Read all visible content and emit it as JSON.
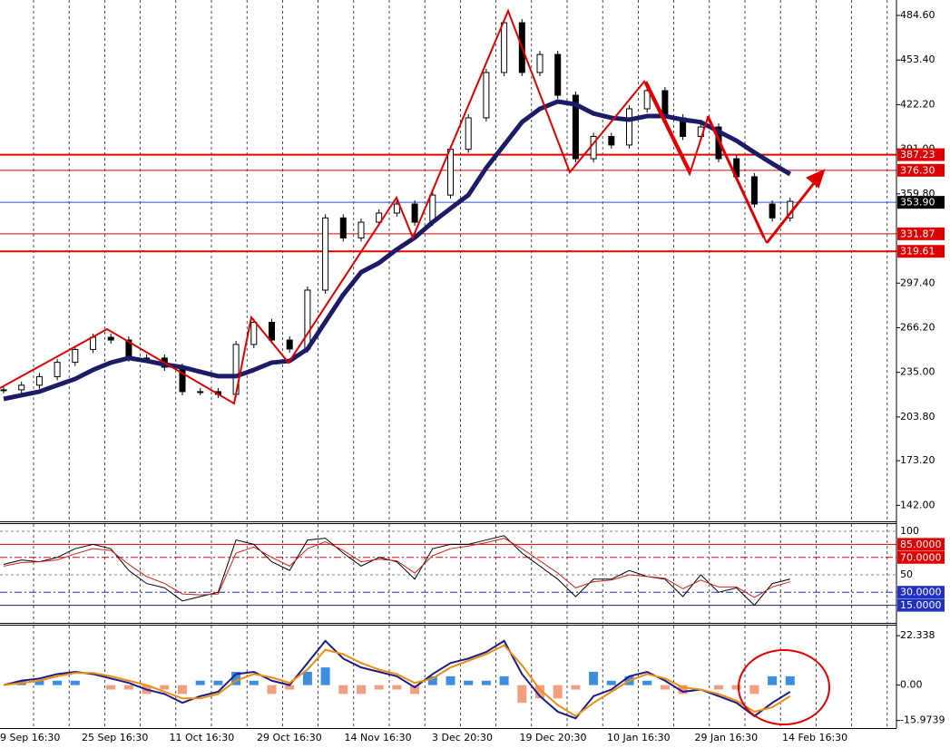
{
  "chart_data": [
    {
      "type": "candlestick",
      "ylim": [
        130.8,
        495.4
      ],
      "yticks": [
        {
          "value": 484.6,
          "label": "484.60"
        },
        {
          "value": 453.4,
          "label": "453.40"
        },
        {
          "value": 422.2,
          "label": "422.20"
        },
        {
          "value": 391,
          "label": "391.00"
        },
        {
          "value": 359.8,
          "label": "359.80"
        },
        {
          "value": 297.4,
          "label": "297.40"
        },
        {
          "value": 266.2,
          "label": "266.20"
        },
        {
          "value": 235,
          "label": "235.00"
        },
        {
          "value": 203.8,
          "label": "203.80"
        },
        {
          "value": 173.2,
          "label": "173.20"
        },
        {
          "value": 142,
          "label": "142.00"
        }
      ],
      "closes": [
        222.8,
        226,
        232,
        242,
        251,
        259.5,
        257.6,
        245,
        245,
        238.6,
        221.5,
        221.5,
        219.6,
        254.5,
        270,
        257.6,
        251.3,
        292.5,
        343,
        329,
        340,
        346.4,
        352.7,
        340,
        359,
        391,
        413,
        444.7,
        479.5,
        444.7,
        457.3,
        428.8,
        384.4,
        400,
        394,
        419.3,
        432,
        413,
        400,
        406.6,
        384.4,
        371.8,
        352.7,
        343,
        354.6
      ],
      "ma": {
        "color": "#1c1c66",
        "values": [
          216.4,
          219,
          221.5,
          226,
          230.4,
          236.7,
          241.8,
          245,
          243,
          240.5,
          238.6,
          235.4,
          232.3,
          232.3,
          236.7,
          241.8,
          243,
          251.3,
          270.3,
          289.3,
          305,
          311.5,
          321,
          329.2,
          340,
          349.6,
          359,
          378,
          394,
          410,
          419.3,
          424.4,
          422.4,
          416,
          413,
          411.7,
          414.2,
          414.2,
          411.7,
          410,
          403.4,
          397,
          388.8,
          381,
          373.6
        ]
      },
      "levels": [
        {
          "value": 387.23,
          "color": "#e00000",
          "box": "#e00000",
          "width": 2
        },
        {
          "value": 376.3,
          "label": "376.30",
          "color": "#e00000",
          "box": "#e00000",
          "width": 1
        },
        {
          "value": 353.9,
          "label": "353.90",
          "color": "#3050d0",
          "box": "#000000",
          "width": 1
        },
        {
          "value": 331.87,
          "color": "#e00000",
          "box": "#e00000",
          "width": 1
        },
        {
          "value": 319.61,
          "color": "#e00000",
          "box": "#e00000",
          "width": 2
        }
      ]
    },
    {
      "type": "line",
      "ylim": [
        -5.2,
        108.3
      ],
      "yticks": [
        100,
        50
      ],
      "series": [
        {
          "color": "#000000",
          "values": [
            62,
            67,
            65,
            70,
            80,
            85,
            80,
            55,
            40,
            35,
            20,
            25,
            30,
            90,
            85,
            65,
            55,
            90,
            92,
            75,
            60,
            70,
            65,
            45,
            80,
            85,
            85,
            90,
            95,
            75,
            60,
            45,
            25,
            45,
            45,
            55,
            48,
            45,
            25,
            50,
            30,
            35,
            15,
            40,
            45
          ]
        },
        {
          "color": "#d02020",
          "values": [
            60,
            64,
            65,
            67,
            74,
            80,
            78,
            62,
            48,
            40,
            28,
            27,
            28,
            75,
            82,
            70,
            60,
            80,
            88,
            78,
            65,
            68,
            66,
            52,
            72,
            80,
            83,
            87,
            92,
            80,
            66,
            52,
            35,
            42,
            44,
            50,
            48,
            46,
            34,
            44,
            36,
            36,
            24,
            36,
            42
          ]
        }
      ],
      "levels": [
        {
          "value": 85,
          "label": "85.0000",
          "color": "#e00000",
          "box": "#e00000",
          "dash": "none"
        },
        {
          "value": 70,
          "label": "70.0000",
          "color": "#e00000",
          "box": "#e00000",
          "dash": "8 3 2 3"
        },
        {
          "value": 30,
          "label": "30.0000",
          "color": "#2030c0",
          "box": "#2030c0",
          "dash": "8 3 2 3"
        },
        {
          "value": 15,
          "label": "15.0000",
          "color": "#1c1c66",
          "box": "#2030c0",
          "dash": "none"
        }
      ]
    },
    {
      "type": "macd",
      "ylim": [
        -19.4,
        26.9
      ],
      "yticks": [
        22.338,
        {
          "value": 0,
          "label": "0.00"
        },
        -15.9739
      ],
      "histogram": {
        "up": "#3c8ee0",
        "down": "#f0a080",
        "values": [
          0,
          2,
          2,
          2,
          2,
          0,
          -2,
          -2,
          -4,
          -2,
          -4,
          2,
          2,
          6,
          2,
          -4,
          -2,
          6,
          8,
          -4,
          -4,
          -2,
          -2,
          -4,
          4,
          4,
          2,
          2,
          4,
          -8,
          -6,
          -6,
          -2,
          6,
          2,
          4,
          2,
          -2,
          -4,
          0,
          -2,
          -2,
          -4,
          4,
          4
        ]
      },
      "series": [
        {
          "color": "#1c1c88",
          "values": [
            0,
            2,
            3,
            5,
            6,
            5,
            3,
            1,
            -2,
            -4,
            -8,
            -5,
            -3,
            5,
            6,
            2,
            0,
            10,
            20,
            12,
            8,
            6,
            4,
            -1,
            5,
            10,
            12,
            15,
            20,
            5,
            -5,
            -12,
            -15,
            -5,
            -2,
            4,
            6,
            2,
            -3,
            -2,
            -5,
            -8,
            -14,
            -8,
            -3
          ]
        },
        {
          "color": "#f08c10",
          "values": [
            0,
            1,
            2,
            4,
            5.5,
            5.5,
            4,
            2,
            0,
            -3,
            -6,
            -6,
            -4,
            2,
            5,
            3.5,
            1,
            7,
            16,
            14,
            10,
            7,
            5,
            1,
            3,
            8,
            11,
            14,
            18,
            9,
            -2,
            -9,
            -14,
            -8,
            -3,
            2,
            5,
            3,
            -1,
            -2,
            -4,
            -7,
            -12,
            -10,
            -5
          ]
        }
      ],
      "x_tick_labels": [
        "9 Sep 16:30",
        "25 Sep 16:30",
        "11 Oct 16:30",
        "29 Oct 16:30",
        "14 Nov 16:30",
        "3 Dec 20:30",
        "19 Dec 20:30",
        "10 Jan 16:30",
        "29 Jan 16:30",
        "14 Feb 16:30"
      ]
    }
  ]
}
